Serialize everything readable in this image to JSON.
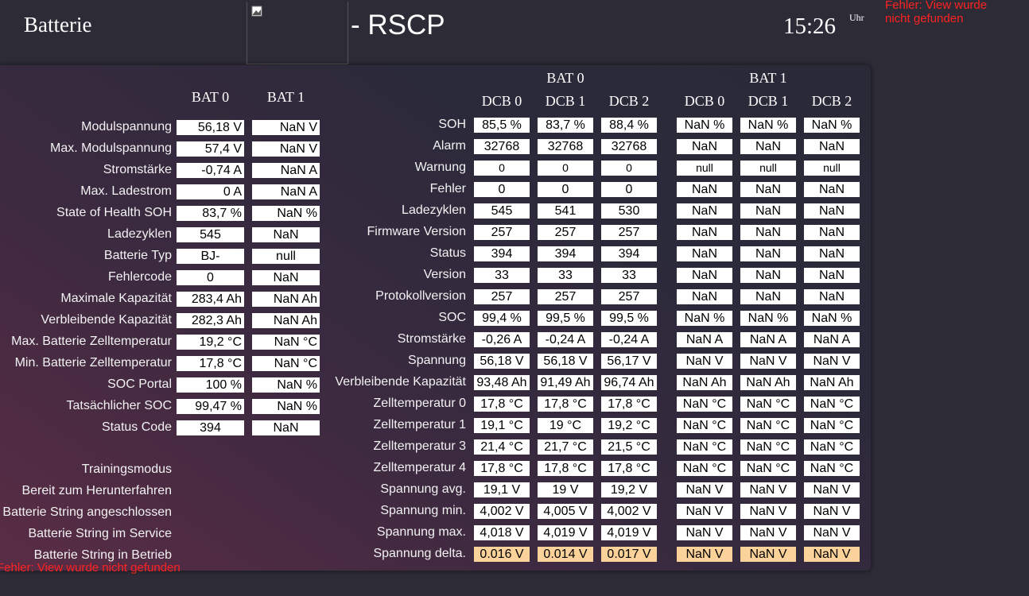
{
  "header": {
    "title": "Batterie",
    "subtitle": "- RSCP",
    "time": "15:26",
    "time_unit": "Uhr",
    "error": "Fehler: View wurde nicht gefunden"
  },
  "left": {
    "columns": [
      "BAT  0",
      "BAT  1"
    ],
    "rows": [
      {
        "label": "Modulspannung",
        "values": [
          "56,18 V",
          "NaN V"
        ]
      },
      {
        "label": "Max. Modulspannung",
        "values": [
          "57,4 V",
          "NaN V"
        ]
      },
      {
        "label": "Stromstärke",
        "values": [
          "-0,74 A",
          "NaN A"
        ]
      },
      {
        "label": "Max. Ladestrom",
        "values": [
          "0 A",
          "NaN A"
        ]
      },
      {
        "label": "State of Health SOH",
        "values": [
          "83,7 %",
          "NaN %"
        ]
      },
      {
        "label": "Ladezyklen",
        "values": [
          "545",
          "NaN"
        ]
      },
      {
        "label": "Batterie Typ",
        "values": [
          "BJ-",
          "null"
        ]
      },
      {
        "label": "Fehlercode",
        "values": [
          "0",
          "NaN"
        ]
      },
      {
        "label": "Maximale Kapazität",
        "values": [
          "283,4 Ah",
          "NaN Ah"
        ]
      },
      {
        "label": "Verbleibende Kapazität",
        "values": [
          "282,3 Ah",
          "NaN Ah"
        ]
      },
      {
        "label": "Max. Batterie Zelltemperatur",
        "values": [
          "19,2 °C",
          "NaN °C"
        ]
      },
      {
        "label": "Min. Batterie Zelltemperatur",
        "values": [
          "17,8 °C",
          "NaN °C"
        ]
      },
      {
        "label": "SOC Portal",
        "values": [
          "100 %",
          "NaN %"
        ]
      },
      {
        "label": "Tatsächlicher SOC",
        "values": [
          "99,47 %",
          "NaN %"
        ]
      },
      {
        "label": "Status Code",
        "values": [
          "394",
          "NaN"
        ]
      }
    ],
    "flags": [
      "Trainingsmodus",
      "Bereit zum Herunterfahren",
      "Batterie String angeschlossen",
      "Batterie String im Service",
      "Batterie String in Betrieb"
    ],
    "error": "Fehler: View wurde nicht gefunden"
  },
  "right": {
    "groups": [
      "BAT  0",
      "BAT  1"
    ],
    "columns": [
      "DCB  0",
      "DCB  1",
      "DCB  2",
      "DCB  0",
      "DCB  1",
      "DCB  2"
    ],
    "rows": [
      {
        "label": "SOH",
        "values": [
          "85,5 %",
          "83,7 %",
          "88,4 %",
          "NaN %",
          "NaN %",
          "NaN %"
        ]
      },
      {
        "label": "Alarm",
        "values": [
          "32768",
          "32768",
          "32768",
          "NaN",
          "NaN",
          "NaN"
        ]
      },
      {
        "label": "Warnung",
        "values": [
          "0",
          "0",
          "0",
          "null",
          "null",
          "null"
        ]
      },
      {
        "label": "Fehler",
        "values": [
          "0",
          "0",
          "0",
          "NaN",
          "NaN",
          "NaN"
        ]
      },
      {
        "label": "Ladezyklen",
        "values": [
          "545",
          "541",
          "530",
          "NaN",
          "NaN",
          "NaN"
        ]
      },
      {
        "label": "Firmware Version",
        "values": [
          "257",
          "257",
          "257",
          "NaN",
          "NaN",
          "NaN"
        ]
      },
      {
        "label": "Status",
        "values": [
          "394",
          "394",
          "394",
          "NaN",
          "NaN",
          "NaN"
        ]
      },
      {
        "label": "Version",
        "values": [
          "33",
          "33",
          "33",
          "NaN",
          "NaN",
          "NaN"
        ]
      },
      {
        "label": "Protokollversion",
        "values": [
          "257",
          "257",
          "257",
          "NaN",
          "NaN",
          "NaN"
        ]
      },
      {
        "label": "SOC",
        "values": [
          "99,4 %",
          "99,5 %",
          "99,5 %",
          "NaN %",
          "NaN %",
          "NaN %"
        ]
      },
      {
        "label": "Stromstärke",
        "values": [
          "-0,26 A",
          "-0,24 A",
          "-0,24 A",
          "NaN A",
          "NaN A",
          "NaN A"
        ]
      },
      {
        "label": "Spannung",
        "values": [
          "56,18 V",
          "56,18 V",
          "56,17 V",
          "NaN V",
          "NaN V",
          "NaN V"
        ]
      },
      {
        "label": "Verbleibende Kapazität",
        "values": [
          "93,48 Ah",
          "91,49 Ah",
          "96,74 Ah",
          "NaN Ah",
          "NaN Ah",
          "NaN Ah"
        ]
      },
      {
        "label": "Zelltemperatur 0",
        "values": [
          "17,8 °C",
          "17,8 °C",
          "17,8 °C",
          "NaN °C",
          "NaN °C",
          "NaN °C"
        ]
      },
      {
        "label": "Zelltemperatur 1",
        "values": [
          "19,1 °C",
          "19 °C",
          "19,2 °C",
          "NaN °C",
          "NaN °C",
          "NaN °C"
        ]
      },
      {
        "label": "Zelltemperatur 3",
        "values": [
          "21,4 °C",
          "21,7 °C",
          "21,5 °C",
          "NaN °C",
          "NaN °C",
          "NaN °C"
        ]
      },
      {
        "label": "Zelltemperatur 4",
        "values": [
          "17,8 °C",
          "17,8 °C",
          "17,8 °C",
          "NaN °C",
          "NaN °C",
          "NaN °C"
        ]
      },
      {
        "label": "Spannung avg.",
        "values": [
          "19,1 V",
          "19 V",
          "19,2 V",
          "NaN V",
          "NaN V",
          "NaN V"
        ]
      },
      {
        "label": "Spannung min.",
        "values": [
          "4,002 V",
          "4,005 V",
          "4,002 V",
          "NaN V",
          "NaN V",
          "NaN V"
        ]
      },
      {
        "label": "Spannung max.",
        "values": [
          "4,018 V",
          "4,019 V",
          "4,019 V",
          "NaN V",
          "NaN V",
          "NaN V"
        ]
      },
      {
        "label": "Spannung delta.",
        "values": [
          "0.016 V",
          "0.014 V",
          "0.017 V",
          "NaN V",
          "NaN V",
          "NaN V"
        ]
      }
    ]
  }
}
